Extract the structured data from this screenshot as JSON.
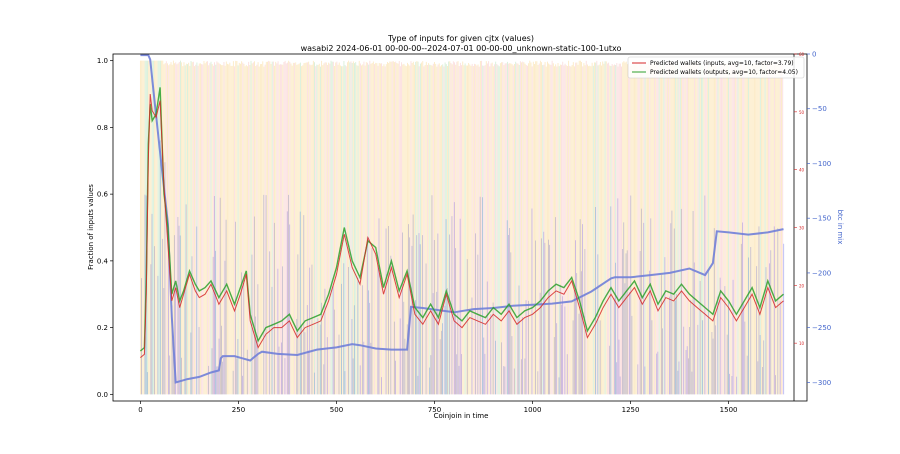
{
  "chart_data": {
    "type": "line",
    "title": "Type of inputs for given cjtx (values)",
    "subtitle": "wasabi2 2024-06-01 00-00-00--2024-07-01 00-00-00_unknown-static-100-1utxo",
    "xlabel": "Coinjoin in time",
    "ylabel": "Fraction of inputs values",
    "y2label": "btc in mix",
    "xlim": [
      -70,
      1700
    ],
    "ylim": [
      -0.02,
      1.02
    ],
    "y2lim": [
      0,
      60
    ],
    "y3lim": [
      -317,
      0
    ],
    "xticks": [
      0,
      250,
      500,
      750,
      1000,
      1250,
      1500
    ],
    "yticks": [
      0.0,
      0.2,
      0.4,
      0.6,
      0.8,
      1.0
    ],
    "y2ticks": [
      10,
      20,
      30,
      40,
      50,
      60
    ],
    "y3ticks": [
      0,
      -50,
      -100,
      -150,
      -200,
      -250,
      -300
    ],
    "legend_position": "top-right",
    "grid": false,
    "colors": {
      "inputs_line": "#d62728",
      "outputs_line": "#2ca02c",
      "btc_line": "#7080d8",
      "right_axis": "#4466cc",
      "inner_axis": "#d62728",
      "bg_orange": "#f6c25a",
      "bg_green": "#8fd18f",
      "bg_red": "#f4a0a0",
      "bg_blue": "#5060ee"
    },
    "series": [
      {
        "name": "Predicted wallets (inputs, avg=10, factor=3.79)",
        "x": [
          0,
          10,
          15,
          20,
          25,
          30,
          40,
          50,
          60,
          70,
          80,
          90,
          100,
          110,
          125,
          140,
          150,
          165,
          180,
          200,
          220,
          240,
          255,
          270,
          280,
          300,
          320,
          340,
          360,
          380,
          400,
          420,
          440,
          460,
          480,
          500,
          520,
          540,
          560,
          580,
          600,
          620,
          640,
          660,
          680,
          700,
          720,
          740,
          760,
          780,
          800,
          820,
          840,
          860,
          880,
          900,
          920,
          940,
          960,
          980,
          1000,
          1020,
          1040,
          1060,
          1080,
          1100,
          1120,
          1140,
          1160,
          1180,
          1200,
          1220,
          1240,
          1260,
          1280,
          1300,
          1320,
          1340,
          1360,
          1380,
          1400,
          1420,
          1440,
          1460,
          1480,
          1500,
          1520,
          1540,
          1560,
          1580,
          1600,
          1620,
          1640
        ],
        "y": [
          0.11,
          0.12,
          0.3,
          0.7,
          0.9,
          0.85,
          0.83,
          0.88,
          0.62,
          0.45,
          0.28,
          0.32,
          0.26,
          0.3,
          0.36,
          0.31,
          0.29,
          0.3,
          0.33,
          0.27,
          0.31,
          0.25,
          0.3,
          0.36,
          0.22,
          0.14,
          0.18,
          0.2,
          0.2,
          0.22,
          0.17,
          0.2,
          0.21,
          0.22,
          0.28,
          0.36,
          0.48,
          0.38,
          0.33,
          0.47,
          0.42,
          0.3,
          0.38,
          0.29,
          0.36,
          0.24,
          0.21,
          0.25,
          0.21,
          0.3,
          0.22,
          0.2,
          0.23,
          0.22,
          0.21,
          0.24,
          0.22,
          0.25,
          0.21,
          0.23,
          0.24,
          0.26,
          0.29,
          0.31,
          0.3,
          0.34,
          0.26,
          0.17,
          0.21,
          0.26,
          0.3,
          0.26,
          0.29,
          0.32,
          0.27,
          0.31,
          0.25,
          0.29,
          0.28,
          0.31,
          0.28,
          0.26,
          0.24,
          0.22,
          0.29,
          0.26,
          0.22,
          0.26,
          0.3,
          0.24,
          0.32,
          0.26,
          0.28
        ]
      },
      {
        "name": "Predicted wallets (outputs, avg=10, factor=4.05)",
        "x": [
          0,
          10,
          15,
          20,
          25,
          30,
          40,
          50,
          60,
          70,
          80,
          90,
          100,
          110,
          125,
          140,
          150,
          165,
          180,
          200,
          220,
          240,
          255,
          270,
          280,
          300,
          320,
          340,
          360,
          380,
          400,
          420,
          440,
          460,
          480,
          500,
          520,
          540,
          560,
          580,
          600,
          620,
          640,
          660,
          680,
          700,
          720,
          740,
          760,
          780,
          800,
          820,
          840,
          860,
          880,
          900,
          920,
          940,
          960,
          980,
          1000,
          1020,
          1040,
          1060,
          1080,
          1100,
          1120,
          1140,
          1160,
          1180,
          1200,
          1220,
          1240,
          1260,
          1280,
          1300,
          1320,
          1340,
          1360,
          1380,
          1400,
          1420,
          1440,
          1460,
          1480,
          1500,
          1520,
          1540,
          1560,
          1580,
          1600,
          1620,
          1640
        ],
        "y": [
          0.13,
          0.14,
          0.35,
          0.75,
          0.87,
          0.82,
          0.84,
          0.92,
          0.6,
          0.5,
          0.3,
          0.34,
          0.28,
          0.31,
          0.37,
          0.33,
          0.31,
          0.32,
          0.34,
          0.29,
          0.33,
          0.27,
          0.32,
          0.37,
          0.24,
          0.16,
          0.2,
          0.21,
          0.22,
          0.24,
          0.19,
          0.22,
          0.23,
          0.24,
          0.3,
          0.38,
          0.5,
          0.4,
          0.35,
          0.46,
          0.44,
          0.32,
          0.4,
          0.31,
          0.37,
          0.26,
          0.23,
          0.27,
          0.23,
          0.31,
          0.24,
          0.22,
          0.25,
          0.24,
          0.23,
          0.26,
          0.24,
          0.27,
          0.23,
          0.25,
          0.26,
          0.28,
          0.31,
          0.33,
          0.32,
          0.35,
          0.28,
          0.19,
          0.23,
          0.28,
          0.32,
          0.28,
          0.31,
          0.34,
          0.29,
          0.33,
          0.27,
          0.31,
          0.3,
          0.33,
          0.3,
          0.28,
          0.26,
          0.24,
          0.31,
          0.28,
          0.24,
          0.28,
          0.32,
          0.26,
          0.34,
          0.28,
          0.3
        ]
      },
      {
        "axis": "btc",
        "x": [
          0,
          5,
          20,
          25,
          35,
          50,
          70,
          80,
          90,
          100,
          120,
          150,
          180,
          200,
          205,
          210,
          240,
          260,
          280,
          300,
          310,
          350,
          400,
          450,
          500,
          540,
          560,
          600,
          640,
          680,
          690,
          720,
          760,
          800,
          850,
          900,
          950,
          1000,
          1050,
          1100,
          1150,
          1200,
          1210,
          1250,
          1300,
          1350,
          1400,
          1440,
          1460,
          1470,
          1500,
          1550,
          1600,
          1640
        ],
        "y": [
          -1,
          -1,
          -1,
          -5,
          -40,
          -90,
          -155,
          -240,
          -300,
          -299,
          -297,
          -295,
          -291,
          -289,
          -278,
          -276,
          -276,
          -278,
          -280,
          -274,
          -272,
          -274,
          -275,
          -270,
          -268,
          -265,
          -266,
          -269,
          -270,
          -270,
          -231,
          -232,
          -234,
          -236,
          -233,
          -232,
          -230,
          -229,
          -228,
          -226,
          -217,
          -205,
          -204,
          -204,
          -202,
          -200,
          -196,
          -202,
          -191,
          -162,
          -163,
          -165,
          -163,
          -160
        ]
      }
    ]
  }
}
